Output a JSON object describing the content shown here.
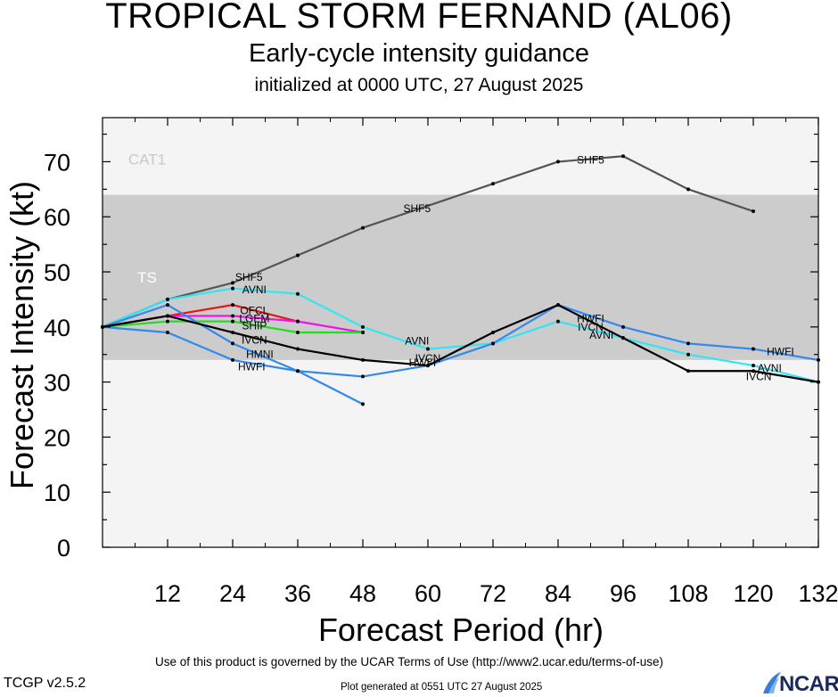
{
  "titles": {
    "main": "TROPICAL STORM FERNAND (AL06)",
    "subtitle": "Early-cycle intensity guidance",
    "init": "initialized at 0000 UTC, 27 August 2025"
  },
  "footer": {
    "terms": "Use of this product is governed by the UCAR Terms of Use (http://www2.ucar.edu/terms-of-use)",
    "generated": "Plot generated at 0551 UTC   27 August 2025",
    "version": "TCGP v2.5.2",
    "logo": "NCAR"
  },
  "chart_data": {
    "type": "line",
    "xlabel": "Forecast Period (hr)",
    "ylabel": "Forecast Intensity (kt)",
    "xlim": [
      0,
      132
    ],
    "ylim": [
      0,
      78
    ],
    "xticks": [
      12,
      24,
      36,
      48,
      60,
      72,
      84,
      96,
      108,
      120,
      132
    ],
    "yticks": [
      0,
      10,
      20,
      30,
      40,
      50,
      60,
      70
    ],
    "bands": [
      {
        "label": "TS",
        "from": 34,
        "to": 64,
        "color": "#cccccc"
      },
      {
        "label": "CAT1",
        "from": 64,
        "to": 78,
        "color": "#f4f4f4"
      }
    ],
    "below_band_color": "#f4f4f4",
    "series": [
      {
        "name": "SHF5",
        "color": "#555555",
        "points": [
          [
            0,
            40
          ],
          [
            12,
            45
          ],
          [
            24,
            48
          ],
          [
            36,
            53
          ],
          [
            48,
            58
          ],
          [
            72,
            66
          ],
          [
            84,
            70
          ],
          [
            96,
            71
          ],
          [
            108,
            65
          ],
          [
            120,
            61
          ]
        ],
        "labels": [
          {
            "x": 27,
            "y": 49
          },
          {
            "x": 58,
            "y": 61.5
          },
          {
            "x": 90,
            "y": 70.3
          }
        ]
      },
      {
        "name": "AVNI",
        "color": "#33e5f0",
        "points": [
          [
            0,
            40
          ],
          [
            12,
            45
          ],
          [
            24,
            47
          ],
          [
            36,
            46
          ],
          [
            48,
            40
          ],
          [
            60,
            36
          ],
          [
            72,
            37
          ],
          [
            84,
            41
          ],
          [
            96,
            38
          ],
          [
            108,
            35
          ],
          [
            120,
            33
          ],
          [
            132,
            30
          ]
        ],
        "labels": [
          {
            "x": 28,
            "y": 46.8
          },
          {
            "x": 58,
            "y": 37.5
          },
          {
            "x": 92,
            "y": 38.5
          },
          {
            "x": 123,
            "y": 32.5
          }
        ]
      },
      {
        "name": "OFCL",
        "color": "#ee1111",
        "points": [
          [
            0,
            40
          ],
          [
            12,
            42
          ],
          [
            24,
            44
          ],
          [
            36,
            41
          ]
        ],
        "labels": [
          {
            "x": 28,
            "y": 43
          }
        ]
      },
      {
        "name": "LGEM",
        "color": "#ee11ee",
        "points": [
          [
            0,
            40
          ],
          [
            12,
            42
          ],
          [
            24,
            42
          ],
          [
            36,
            41
          ],
          [
            48,
            39
          ]
        ],
        "labels": [
          {
            "x": 28,
            "y": 41.5
          }
        ]
      },
      {
        "name": "SHIP",
        "color": "#22dd22",
        "points": [
          [
            0,
            40
          ],
          [
            12,
            41
          ],
          [
            24,
            41
          ],
          [
            36,
            39
          ],
          [
            48,
            39
          ]
        ],
        "labels": [
          {
            "x": 28,
            "y": 40.2
          }
        ]
      },
      {
        "name": "HWFI",
        "color": "#3388ee",
        "points": [
          [
            0,
            40
          ],
          [
            12,
            39
          ],
          [
            24,
            34
          ],
          [
            36,
            32
          ],
          [
            48,
            31
          ],
          [
            60,
            33
          ],
          [
            72,
            37
          ],
          [
            84,
            44
          ],
          [
            96,
            40
          ],
          [
            108,
            37
          ],
          [
            120,
            36
          ],
          [
            132,
            34
          ]
        ],
        "labels": [
          {
            "x": 27.5,
            "y": 32.8
          },
          {
            "x": 59,
            "y": 33.5
          },
          {
            "x": 90,
            "y": 41.5
          },
          {
            "x": 125,
            "y": 35.5
          }
        ]
      },
      {
        "name": "HMNI",
        "color": "#3388ee",
        "points": [
          [
            0,
            40
          ],
          [
            12,
            44
          ],
          [
            24,
            37
          ],
          [
            36,
            32
          ],
          [
            48,
            26
          ]
        ],
        "labels": [
          {
            "x": 29,
            "y": 35
          }
        ]
      },
      {
        "name": "IVCN",
        "color": "#000000",
        "points": [
          [
            0,
            40
          ],
          [
            12,
            42
          ],
          [
            24,
            39
          ],
          [
            36,
            36
          ],
          [
            48,
            34
          ],
          [
            60,
            33
          ],
          [
            72,
            39
          ],
          [
            84,
            44
          ],
          [
            96,
            38
          ],
          [
            108,
            32
          ],
          [
            120,
            32
          ],
          [
            132,
            30
          ]
        ],
        "labels": [
          {
            "x": 28,
            "y": 37.6
          },
          {
            "x": 60,
            "y": 34.3
          },
          {
            "x": 90,
            "y": 40
          },
          {
            "x": 121,
            "y": 31
          }
        ]
      }
    ]
  }
}
